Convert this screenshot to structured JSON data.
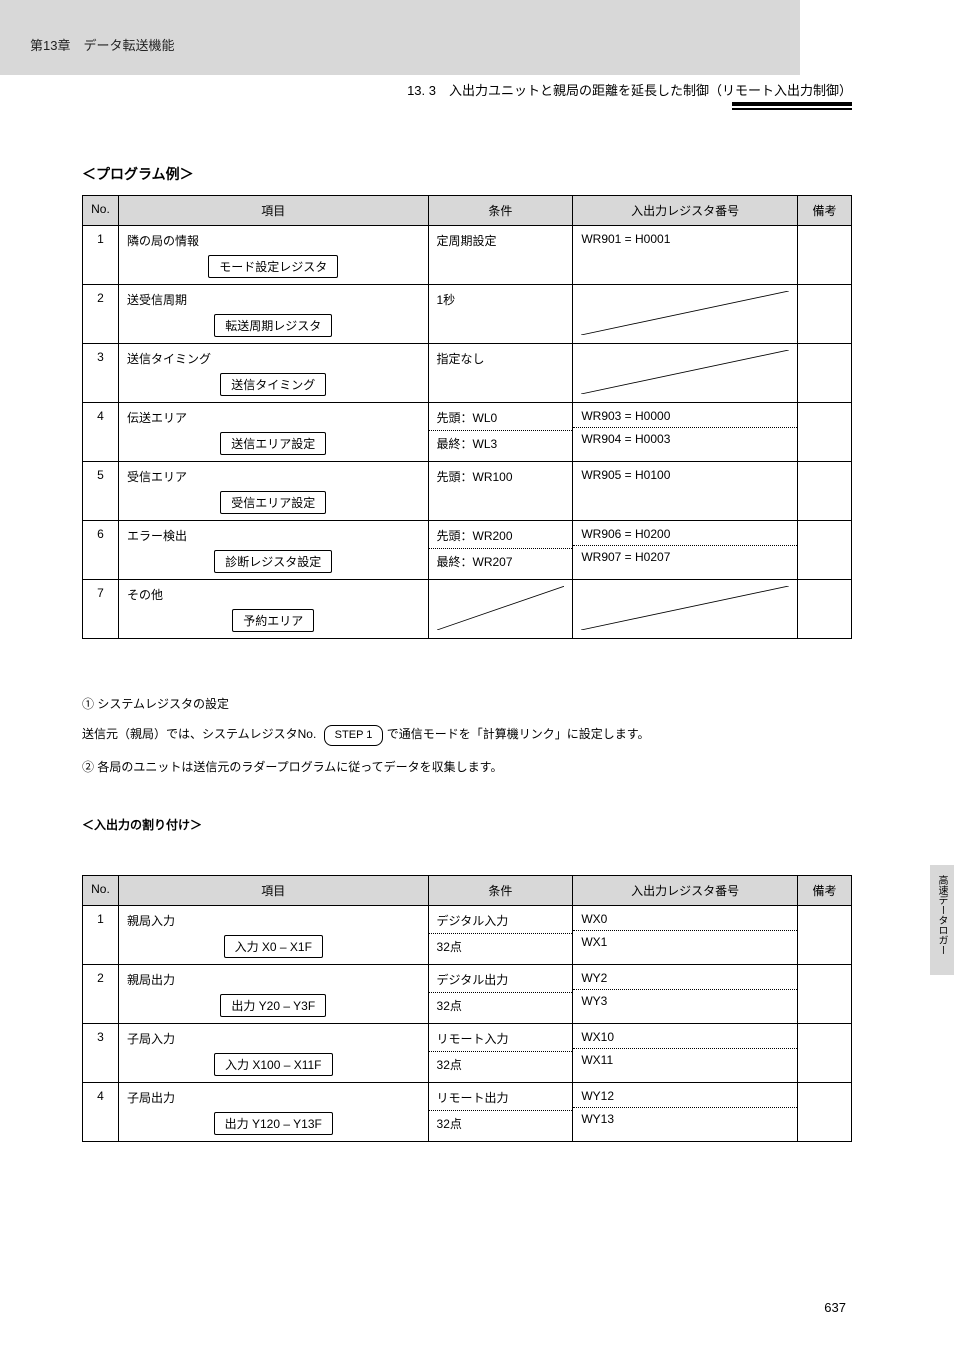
{
  "header": {
    "chapter": "第13章　データ転送機能"
  },
  "breadcrumb": "13. 3　入出力ユニットと親局の距離を延長した制御（リモート入出力制御）",
  "side_tab": "高速データロガー",
  "page_number": "637",
  "section1": {
    "title": "＜プログラム例＞",
    "header": {
      "no": "No.",
      "item": "項目",
      "cond": "条件",
      "io": "入出力レジスタ番号",
      "ref": "備考"
    },
    "rows": [
      {
        "no": "1",
        "item_pre": "隣の局の情報",
        "btn": "モード設定レジスタ",
        "cond": "定周期設定",
        "io": "WR901 = H0001",
        "ref": ""
      },
      {
        "no": "2",
        "item_pre": "送受信周期",
        "btn": "転送周期レジスタ",
        "cond": "1秒",
        "io_diag": true,
        "ref": ""
      },
      {
        "no": "3",
        "item_pre": "送信タイミング",
        "btn": "送信タイミング",
        "cond": "指定なし",
        "io_diag": true,
        "ref": ""
      },
      {
        "no": "4",
        "item_pre": "伝送エリア",
        "btn": "送信エリア設定",
        "cond_split": [
          "先頭：WL0",
          "最終：WL3"
        ],
        "io_split": [
          "WR903 = H0000",
          "WR904 = H0003"
        ],
        "ref": ""
      },
      {
        "no": "5",
        "item_pre": "受信エリア",
        "btn": "受信エリア設定",
        "cond": "先頭：WR100",
        "io": "WR905 = H0100",
        "ref": ""
      },
      {
        "no": "6",
        "item_pre": "エラー検出",
        "btn": "診断レジスタ設定",
        "cond_split": [
          "先頭：WR200",
          "最終：WR207"
        ],
        "io_split": [
          "WR906 = H0200",
          "WR907 = H0207"
        ],
        "ref": ""
      },
      {
        "no": "7",
        "item_pre": "その他",
        "btn": "予約エリア",
        "cond_diag": true,
        "io_diag": true,
        "ref": ""
      }
    ]
  },
  "notes": {
    "line1": "① システムレジスタの設定",
    "line2": "送信元（親局）では、システムレジスタNo.",
    "pill": "STEP 1",
    "line2b": "で通信モードを「計算機リンク」に設定します。",
    "line3": "② 各局のユニットは送信元のラダープログラムに従ってデータを収集します。",
    "sub_title": "＜入出力の割り付け＞",
    "table2_header": {
      "no": "No.",
      "item": "項目",
      "cond": "条件",
      "io": "入出力レジスタ番号",
      "ref": "備考"
    },
    "table2_rows": [
      {
        "no": "1",
        "item_pre": "親局入力",
        "btn": "入力 X0 – X1F",
        "cond_split": [
          "デジタル入力",
          "32点"
        ],
        "io_split": [
          "WX0",
          "WX1"
        ],
        "ref": ""
      },
      {
        "no": "2",
        "item_pre": "親局出力",
        "btn": "出力 Y20 – Y3F",
        "cond_split": [
          "デジタル出力",
          "32点"
        ],
        "io_split": [
          "WY2",
          "WY3"
        ],
        "ref": ""
      },
      {
        "no": "3",
        "item_pre": "子局入力",
        "btn": "入力 X100 – X11F",
        "cond_split": [
          "リモート入力",
          "32点"
        ],
        "io_split": [
          "WX10",
          "WX11"
        ],
        "ref": ""
      },
      {
        "no": "4",
        "item_pre": "子局出力",
        "btn": "出力 Y120 – Y13F",
        "cond_split": [
          "リモート出力",
          "32点"
        ],
        "io_split": [
          "WY12",
          "WY13"
        ],
        "ref": ""
      }
    ]
  },
  "colors": {
    "header_grey": "#d8d8d8"
  }
}
